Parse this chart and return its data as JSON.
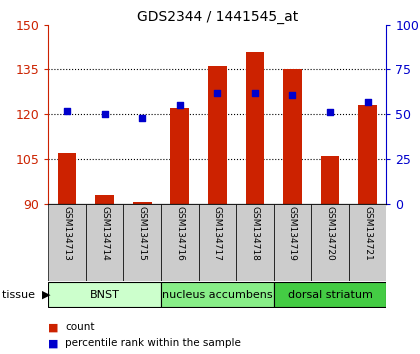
{
  "title": "GDS2344 / 1441545_at",
  "samples": [
    "GSM134713",
    "GSM134714",
    "GSM134715",
    "GSM134716",
    "GSM134717",
    "GSM134718",
    "GSM134719",
    "GSM134720",
    "GSM134721"
  ],
  "counts": [
    107,
    93,
    90.5,
    122,
    136,
    141,
    135,
    106,
    123
  ],
  "percentiles": [
    52,
    50,
    48,
    55,
    62,
    62,
    61,
    51,
    57
  ],
  "y_min": 90,
  "y_max": 150,
  "y_ticks": [
    90,
    105,
    120,
    135,
    150
  ],
  "right_y_ticks": [
    0,
    25,
    50,
    75,
    100
  ],
  "bar_color": "#cc2200",
  "dot_color": "#0000cc",
  "tissue_groups": [
    {
      "label": "BNST",
      "start": 0,
      "end": 3,
      "color": "#ccffcc"
    },
    {
      "label": "nucleus accumbens",
      "start": 3,
      "end": 6,
      "color": "#88ee88"
    },
    {
      "label": "dorsal striatum",
      "start": 6,
      "end": 9,
      "color": "#44cc44"
    }
  ],
  "sample_box_color": "#cccccc",
  "left_tick_color": "#cc2200",
  "right_tick_color": "#0000cc",
  "grid_lines": [
    105,
    120,
    135
  ],
  "legend": [
    {
      "label": "count",
      "color": "#cc2200"
    },
    {
      "label": "percentile rank within the sample",
      "color": "#0000cc"
    }
  ]
}
